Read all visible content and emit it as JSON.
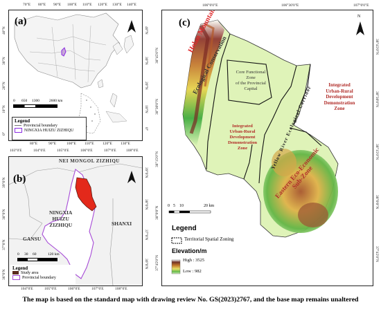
{
  "panel_a": {
    "label": "(a)",
    "top_ticks": [
      "70°E",
      "80°E",
      "90°E",
      "100°E",
      "110°E",
      "120°E",
      "130°E",
      "140°E"
    ],
    "bottom_ticks": [
      "80°E",
      "90°E",
      "100°E",
      "110°E",
      "120°E",
      "130°E"
    ],
    "left_ticks": [
      "40°N",
      "30°N",
      "20°N",
      "10°N",
      "0°"
    ],
    "right_ticks": [
      "40°N",
      "30°N",
      "20°N",
      "10°N",
      "0°"
    ],
    "scale_labels": [
      "0",
      "650",
      "1300",
      "2600 km"
    ],
    "legend_title": "Legend",
    "legend_items": [
      "Provincial boundary",
      "NINGXIA HUIZU ZIZHIQU"
    ]
  },
  "panel_b": {
    "label": "(b)",
    "top_ticks": [
      "103°0'E",
      "104°0'E",
      "105°0'E",
      "106°0'E",
      "107°0'E",
      "108°0'E"
    ],
    "bottom_ticks": [
      "104°0'E",
      "105°0'E",
      "106°0'E",
      "107°0'E",
      "108°0'E"
    ],
    "left_ticks": [
      "39°0'N",
      "38°0'N",
      "37°0'N",
      "36°0'N"
    ],
    "right_ticks": [
      "39°0'N",
      "38°0'N",
      "37°0'N",
      "36°0'N"
    ],
    "region_names": {
      "nei_mongol": "NEI MONGOL ZIZHIQU",
      "ningxia": [
        "NINGXIA",
        "HUIZU",
        "ZIZHIQU"
      ],
      "shanxi": "SHANXI",
      "gansu": "GANSU"
    },
    "scale_labels": [
      "0",
      "30",
      "60",
      "120 km"
    ],
    "legend_title": "Legend",
    "legend_items": [
      "Study area",
      "Provincial boundary"
    ]
  },
  "panel_c": {
    "label": "(c)",
    "top_ticks": [
      "106°0'0\"E",
      "106°30'0\"E",
      "107°0'0\"E"
    ],
    "left_ticks": [
      "38°45'0\"N",
      "38°30'0\"N",
      "38°15'0\"N",
      "38°0'0\"N",
      "37°45'0\"N"
    ],
    "right_ticks": [
      "38°45'0\"N",
      "38°30'0\"N",
      "38°15'0\"N",
      "38°0'0\"N",
      "37°45'0\"N"
    ],
    "zones": {
      "helan_mountains": "Helan Mountains",
      "ecological_conservation": "Ecological Conservation",
      "core_functional": [
        "Core Functional",
        "Zone",
        "of the Provincial",
        "Capital"
      ],
      "integrated_west": [
        "Integrated",
        "Urban-Rural",
        "Development",
        "Demonstration",
        "Zone"
      ],
      "yellow_river_corridor": [
        "Yellow",
        "River",
        "Ecological",
        "Corridor"
      ],
      "integrated_east": [
        "Integrated",
        "Urban-Rural",
        "Development",
        "Demonstration",
        "Zone"
      ],
      "eastern_economic": [
        "Eastern Eco-Economic",
        "Sub-Zone"
      ]
    },
    "scale_labels": [
      "0",
      "5",
      "10",
      "20 km"
    ],
    "legend_title": "Legend",
    "legend_zoning": "Territorial Spatial Zoning",
    "elevation_title": "Elevation/m",
    "elevation_high": "High : 3525",
    "elevation_low": "Low : 982"
  },
  "north_label": "N",
  "caption": "The map is based on the standard map with drawing review No. GS(2023)2767, and the base map remains unaltered"
}
